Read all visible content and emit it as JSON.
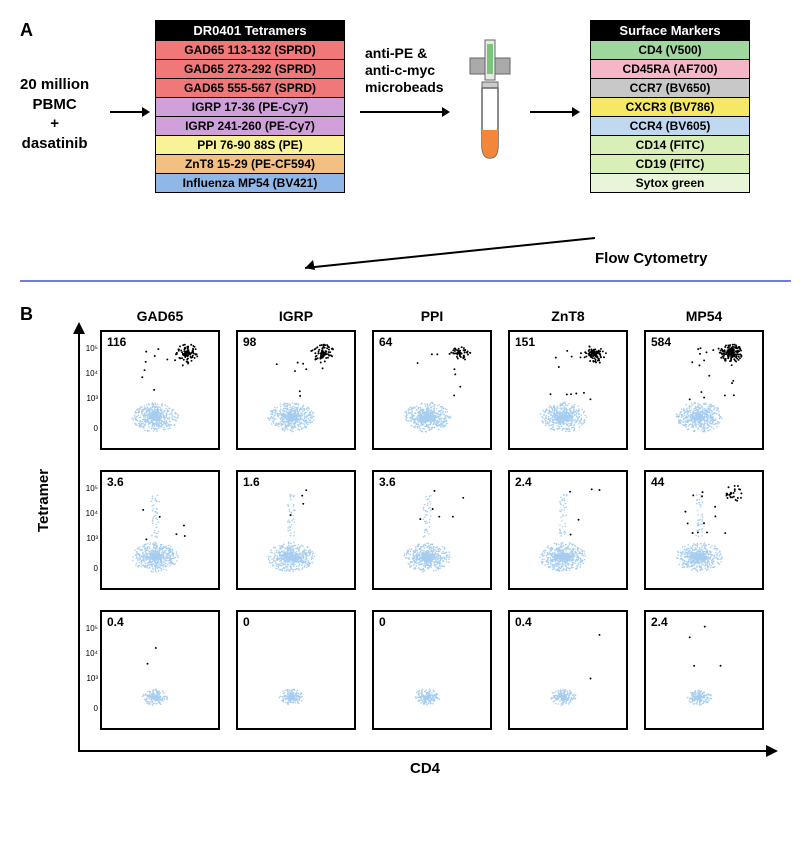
{
  "panelA": {
    "label": "A",
    "pbmc_lines": [
      "20 million",
      "PBMC",
      "+",
      "dasatinib"
    ],
    "tetramer": {
      "header": "DR0401 Tetramers",
      "rows": [
        {
          "text": "GAD65 113-132 (SPRD)",
          "bg": "#f07878"
        },
        {
          "text": "GAD65 273-292 (SPRD)",
          "bg": "#f07878"
        },
        {
          "text": "GAD65 555-567 (SPRD)",
          "bg": "#f07878"
        },
        {
          "text": "IGRP 17-36 (PE-Cy7)",
          "bg": "#cfa0da"
        },
        {
          "text": "IGRP 241-260 (PE-Cy7)",
          "bg": "#cfa0da"
        },
        {
          "text": "PPI 76-90 88S (PE)",
          "bg": "#faf296"
        },
        {
          "text": "ZnT8 15-29 (PE-CF594)",
          "bg": "#f4c082"
        },
        {
          "text": "Influenza MP54 (BV421)",
          "bg": "#8fb8e8"
        }
      ]
    },
    "microbeads_lines": [
      "anti-PE &",
      "anti-c-myc",
      "microbeads"
    ],
    "surface": {
      "header": "Surface Markers",
      "rows": [
        {
          "text": "CD4 (V500)",
          "bg": "#9fd79f"
        },
        {
          "text": "CD45RA (AF700)",
          "bg": "#f5b7c8"
        },
        {
          "text": "CCR7 (BV650)",
          "bg": "#c8c8c8"
        },
        {
          "text": "CXCR3 (BV786)",
          "bg": "#f5e866"
        },
        {
          "text": "CCR4 (BV605)",
          "bg": "#c0d8f0"
        },
        {
          "text": "CD14 (FITC)",
          "bg": "#d8f0b8"
        },
        {
          "text": "CD19 (FITC)",
          "bg": "#d8f0b8"
        },
        {
          "text": "Sytox green",
          "bg": "#e8f5d8"
        }
      ]
    },
    "flow_label": "Flow Cytometry"
  },
  "panelB": {
    "label": "B",
    "columns": [
      "GAD65",
      "IGRP",
      "PPI",
      "ZnT8",
      "MP54"
    ],
    "y_ticks": [
      "10⁵",
      "10⁴",
      "10³",
      "0"
    ],
    "row_values": [
      [
        "116",
        "98",
        "64",
        "151",
        "584"
      ],
      [
        "3.6",
        "1.6",
        "3.6",
        "2.4",
        "44"
      ],
      [
        "0.4",
        "0",
        "0",
        "0.4",
        "2.4"
      ]
    ],
    "cells": [
      [
        {
          "bigBlue": true,
          "blackCluster": "heavy",
          "blackScatter": 12
        },
        {
          "bigBlue": true,
          "blackCluster": "heavy",
          "blackScatter": 10
        },
        {
          "bigBlue": true,
          "blackCluster": "med",
          "blackScatter": 8
        },
        {
          "bigBlue": true,
          "blackCluster": "heavy",
          "blackScatter": 14
        },
        {
          "bigBlue": true,
          "blackCluster": "vheavy",
          "blackScatter": 20
        }
      ],
      [
        {
          "bigBlue": true,
          "blackCluster": "none",
          "blackScatter": 6,
          "tailUp": true
        },
        {
          "bigBlue": true,
          "blackCluster": "none",
          "blackScatter": 4,
          "tailUp": true
        },
        {
          "bigBlue": true,
          "blackCluster": "none",
          "blackScatter": 6,
          "tailUp": true
        },
        {
          "bigBlue": true,
          "blackCluster": "none",
          "blackScatter": 5,
          "tailUp": true
        },
        {
          "bigBlue": true,
          "blackCluster": "light",
          "blackScatter": 12,
          "tailUp": true
        }
      ],
      [
        {
          "bigBlue": false,
          "blackCluster": "none",
          "blackScatter": 2
        },
        {
          "bigBlue": false,
          "blackCluster": "none",
          "blackScatter": 0
        },
        {
          "bigBlue": false,
          "blackCluster": "none",
          "blackScatter": 0
        },
        {
          "bigBlue": false,
          "blackCluster": "none",
          "blackScatter": 2
        },
        {
          "bigBlue": false,
          "blackCluster": "none",
          "blackScatter": 4
        }
      ]
    ],
    "y_label": "Tetramer",
    "x_label": "CD4",
    "colors": {
      "blue": "#a6cdef",
      "black": "#000000"
    }
  }
}
